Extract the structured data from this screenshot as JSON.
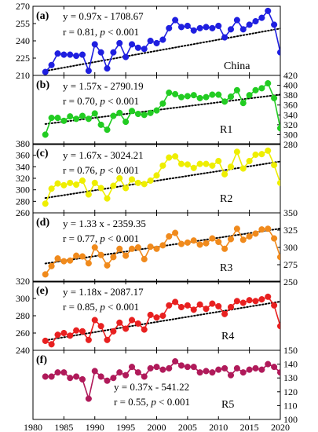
{
  "chart_data": {
    "type": "line",
    "layout": "six vertically stacked panels sharing the x axis; tick labels alternate between left and right y axes",
    "x_axis": {
      "range": [
        1980,
        2020
      ],
      "ticks": [
        1980,
        1985,
        1990,
        1995,
        2000,
        2005,
        2010,
        2015,
        2020
      ],
      "tick_labels": [
        "1980",
        "1985",
        "1990",
        "1995",
        "2000",
        "2005",
        "2010",
        "2015",
        "2020"
      ]
    },
    "years": [
      1982,
      1983,
      1984,
      1985,
      1986,
      1987,
      1988,
      1989,
      1990,
      1991,
      1992,
      1993,
      1994,
      1995,
      1996,
      1997,
      1998,
      1999,
      2000,
      2001,
      2002,
      2003,
      2004,
      2005,
      2006,
      2007,
      2008,
      2009,
      2010,
      2011,
      2012,
      2013,
      2014,
      2015,
      2016,
      2017,
      2018,
      2019,
      2020
    ],
    "trend_style": "black dotted line",
    "panels": [
      {
        "letter": "(a)",
        "region": "China",
        "color": "#1f1fe0",
        "axis_side": "left",
        "ylim": [
          210,
          270
        ],
        "yticks": [
          210,
          225,
          240,
          255,
          270
        ],
        "ytick_labels": [
          "210",
          "225",
          "240",
          "255",
          "270"
        ],
        "eq_line1": "y = 0.97x - 1708.67",
        "eq_r": "r = 0.81, ",
        "eq_p": "p",
        "eq_p_rest": " < 0.001",
        "slope": 0.97,
        "intercept": -1708.67,
        "values": [
          213,
          219,
          229,
          228,
          228,
          227,
          228,
          214,
          237,
          230,
          216,
          230,
          238,
          226,
          237,
          234,
          233,
          240,
          238,
          241,
          251,
          258,
          252,
          253,
          249,
          251,
          252,
          251,
          253,
          243,
          250,
          258,
          250,
          254,
          257,
          260,
          266,
          254,
          230
        ]
      },
      {
        "letter": "(b)",
        "region": "R1",
        "color": "#22cc22",
        "axis_side": "right",
        "ylim": [
          280,
          420
        ],
        "yticks": [
          280,
          300,
          320,
          340,
          360,
          380,
          400,
          420
        ],
        "ytick_labels": [
          "280",
          "300",
          "320",
          "340",
          "360",
          "380",
          "400",
          "420"
        ],
        "eq_line1": "y = 1.57x - 2790.19",
        "eq_r": "r = 0.70, ",
        "eq_p": "p",
        "eq_p_rest": " < 0.001",
        "slope": 1.57,
        "intercept": -2790.19,
        "values": [
          300,
          334,
          334,
          328,
          337,
          332,
          338,
          332,
          343,
          320,
          310,
          338,
          344,
          326,
          348,
          342,
          340,
          344,
          349,
          363,
          385,
          382,
          376,
          378,
          380,
          374,
          376,
          381,
          381,
          367,
          377,
          390,
          364,
          380,
          390,
          394,
          404,
          374,
          313
        ]
      },
      {
        "letter": "(c)",
        "region": "R2",
        "color": "#eeee00",
        "axis_side": "left",
        "ylim": [
          260,
          380
        ],
        "yticks": [
          260,
          280,
          300,
          320,
          340,
          360,
          380
        ],
        "ytick_labels": [
          "260",
          "280",
          "300",
          "320",
          "340",
          "360",
          "380"
        ],
        "eq_line1": "y = 1.67x - 3024.21",
        "eq_r": "r = 0.76, ",
        "eq_p": "p",
        "eq_p_rest": " < 0.001",
        "slope": 1.67,
        "intercept": -3024.21,
        "values": [
          276,
          302,
          311,
          308,
          312,
          309,
          316,
          292,
          312,
          303,
          285,
          307,
          320,
          303,
          318,
          312,
          310,
          316,
          325,
          342,
          356,
          358,
          345,
          344,
          338,
          345,
          345,
          342,
          350,
          327,
          340,
          366,
          337,
          350,
          361,
          362,
          368,
          343,
          312
        ]
      },
      {
        "letter": "(d)",
        "region": "R3",
        "color": "#f08a1c",
        "axis_side": "right",
        "ylim": [
          250,
          350
        ],
        "yticks": [
          250,
          275,
          300,
          325,
          350
        ],
        "ytick_labels": [
          "250",
          "275",
          "300",
          "325",
          "350"
        ],
        "eq_line1": "y = 1.33 x - 2359.35",
        "eq_r": "r = 0.77, ",
        "eq_p": "p",
        "eq_p_rest": " < 0.001",
        "slope": 1.33,
        "intercept": -2359.35,
        "values": [
          261,
          273,
          284,
          280,
          281,
          288,
          287,
          277,
          300,
          289,
          274,
          286,
          298,
          288,
          298,
          300,
          283,
          301,
          298,
          303,
          316,
          321,
          305,
          307,
          310,
          304,
          306,
          313,
          308,
          298,
          312,
          327,
          311,
          316,
          320,
          326,
          327,
          313,
          286
        ]
      },
      {
        "letter": "(e)",
        "region": "R4",
        "color": "#e82020",
        "axis_side": "left",
        "ylim": [
          240,
          320
        ],
        "yticks": [
          240,
          260,
          280,
          300,
          320
        ],
        "ytick_labels": [
          "240",
          "260",
          "280",
          "300",
          "320"
        ],
        "eq_line1": "y = 1.18x - 2087.17",
        "eq_r": "r = 0.85, ",
        "eq_p": "p",
        "eq_p_rest": " < 0.001",
        "slope": 1.18,
        "intercept": -2087.17,
        "values": [
          251,
          247,
          258,
          260,
          257,
          263,
          262,
          252,
          275,
          268,
          252,
          262,
          272,
          265,
          275,
          271,
          264,
          281,
          278,
          280,
          292,
          296,
          290,
          292,
          287,
          293,
          288,
          294,
          291,
          282,
          290,
          297,
          295,
          298,
          297,
          299,
          302,
          292,
          268
        ]
      },
      {
        "letter": "(f)",
        "region": "R5",
        "color": "#b01a5a",
        "axis_side": "right",
        "ylim": [
          100,
          150
        ],
        "yticks": [
          100,
          110,
          120,
          130,
          140,
          150
        ],
        "ytick_labels": [
          "100",
          "110",
          "120",
          "130",
          "140",
          "150"
        ],
        "eq_line1": "y = 0.37x - 541.22",
        "eq_r": "r = 0.55, ",
        "eq_p": "p",
        "eq_p_rest": " < 0.001",
        "slope": 0.37,
        "intercept": -541.22,
        "values": [
          131,
          131,
          134,
          134,
          130,
          131,
          129,
          115,
          135,
          131,
          128,
          130,
          134,
          132,
          138,
          134,
          131,
          137,
          138,
          136,
          137,
          142,
          139,
          138,
          138,
          134,
          135,
          134,
          136,
          137,
          132,
          137,
          134,
          136,
          137,
          136,
          140,
          138,
          134
        ]
      }
    ]
  }
}
